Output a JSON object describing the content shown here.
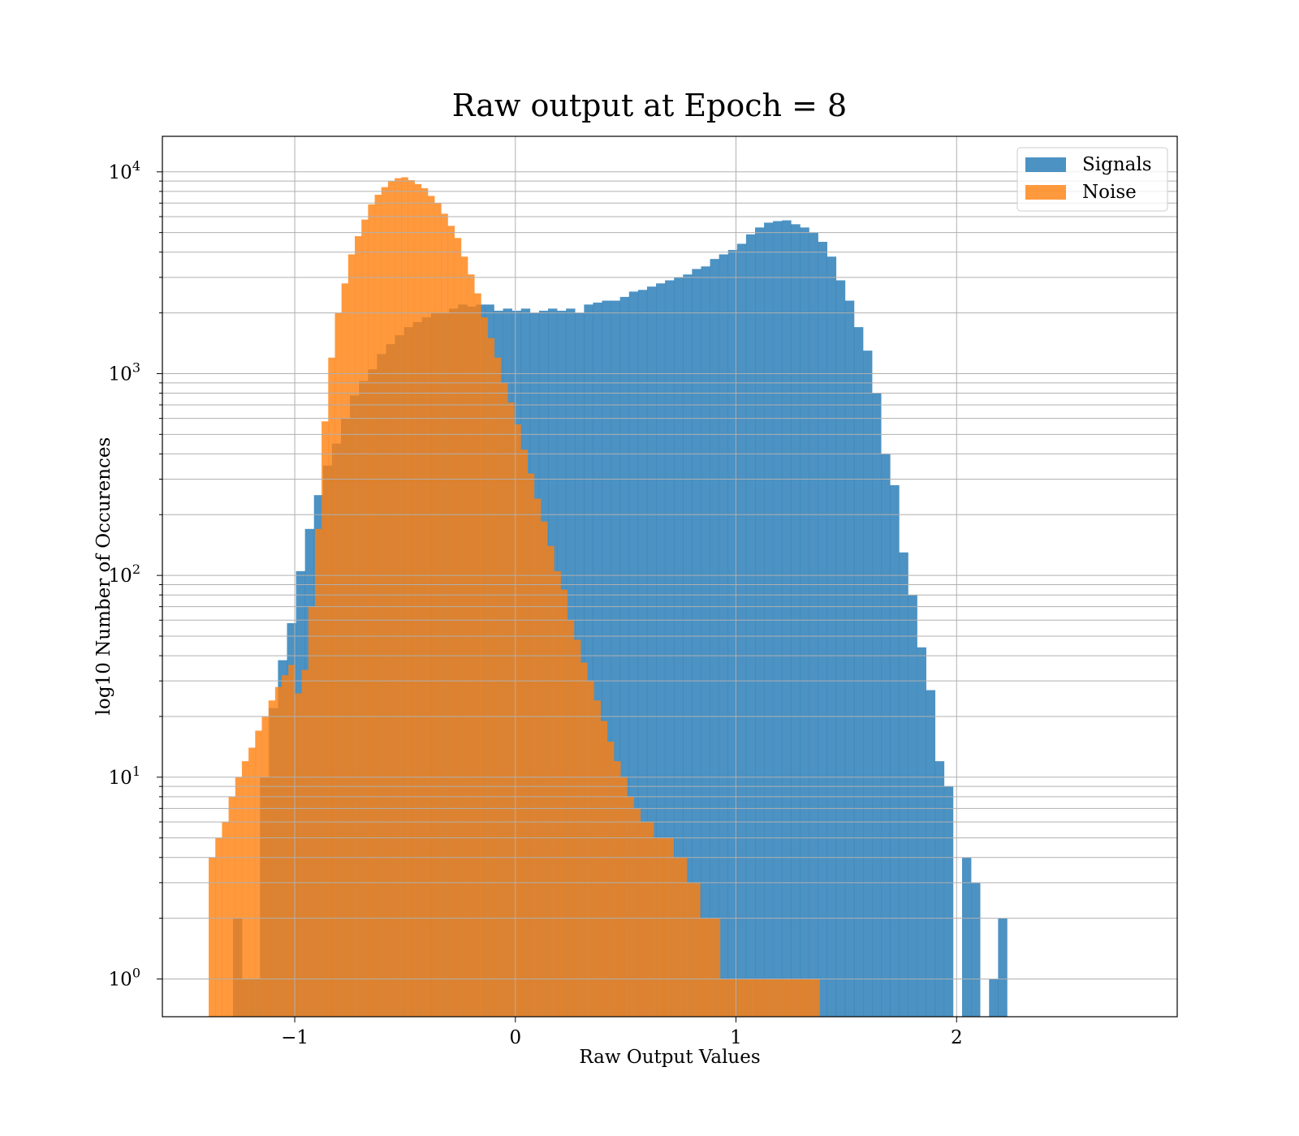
{
  "chart_data": {
    "type": "bar",
    "title": "Raw output at Epoch = 8",
    "xlabel": "Raw Output Values",
    "ylabel": "log10 Number of Occurences",
    "xlim": [
      -1.6,
      3.0
    ],
    "ylim": [
      0.65,
      15000
    ],
    "yscale": "log",
    "grid": true,
    "legend_position": "top-right",
    "x_ticks": [
      -1,
      0,
      1,
      2
    ],
    "x_tick_labels": [
      "−1",
      "0",
      "1",
      "2"
    ],
    "y_ticks": [
      1,
      10,
      100,
      1000,
      10000
    ],
    "y_tick_labels": [
      [
        "10",
        "0"
      ],
      [
        "10",
        "1"
      ],
      [
        "10",
        "2"
      ],
      [
        "10",
        "3"
      ],
      [
        "10",
        "4"
      ]
    ],
    "colors": {
      "signals": "#1f77b4",
      "noise": "#ff7f0e"
    },
    "bar_opacity": 0.8,
    "series": [
      {
        "name": "Signals",
        "bin_start": -1.28,
        "bin_width": 0.0408,
        "values": [
          2,
          1,
          1,
          10,
          22,
          38,
          58,
          105,
          170,
          250,
          350,
          450,
          600,
          780,
          920,
          1050,
          1250,
          1400,
          1550,
          1700,
          1800,
          1900,
          2000,
          2000,
          2100,
          2200,
          2150,
          2200,
          2200,
          2050,
          2100,
          2050,
          2100,
          2000,
          2050,
          2100,
          2050,
          2100,
          2000,
          2200,
          2250,
          2300,
          2300,
          2400,
          2550,
          2600,
          2700,
          2800,
          2900,
          3000,
          3100,
          3300,
          3400,
          3700,
          3900,
          4100,
          4400,
          4900,
          5300,
          5600,
          5700,
          5750,
          5500,
          5300,
          5000,
          4500,
          3800,
          2900,
          2300,
          1700,
          1300,
          800,
          400,
          280,
          130,
          80,
          44,
          27,
          12,
          9,
          0,
          4,
          3,
          0,
          1,
          2
        ]
      },
      {
        "name": "Noise",
        "bin_start": -1.39,
        "bin_width": 0.0301,
        "values": [
          4,
          5,
          6,
          8,
          10,
          12,
          14,
          17,
          20,
          24,
          28,
          32,
          36,
          26,
          34,
          70,
          170,
          580,
          1200,
          2000,
          2800,
          3900,
          4800,
          5800,
          6900,
          7700,
          8400,
          9000,
          9300,
          9400,
          9100,
          8700,
          8300,
          7600,
          7000,
          6200,
          5400,
          4700,
          3800,
          3100,
          2500,
          1900,
          1500,
          1200,
          900,
          720,
          560,
          420,
          320,
          240,
          185,
          140,
          105,
          85,
          60,
          48,
          37,
          30,
          24,
          19,
          15,
          12,
          10,
          8,
          7,
          6,
          6,
          5,
          5,
          5,
          4,
          4,
          3,
          3,
          2,
          2,
          2,
          1,
          1,
          1,
          1,
          1,
          1,
          1,
          1,
          1,
          1,
          1,
          1,
          1,
          1,
          1
        ]
      }
    ]
  }
}
